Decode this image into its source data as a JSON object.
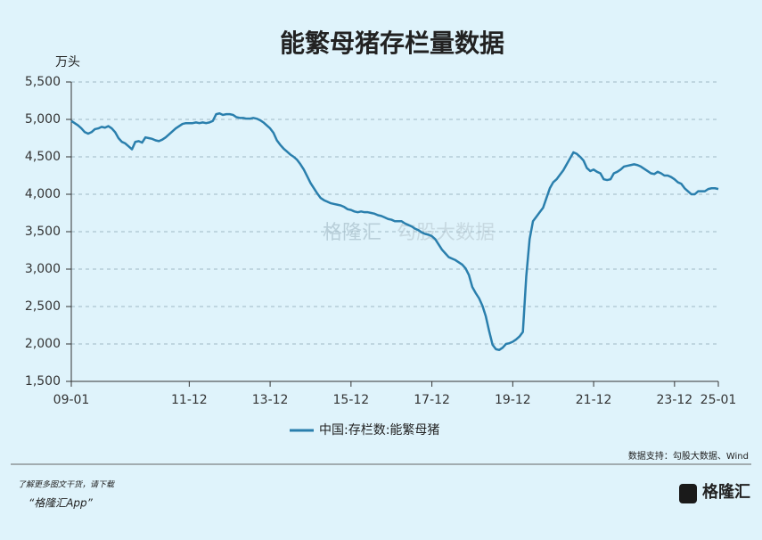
{
  "chart_data": {
    "type": "line",
    "title": "能繁母猪存栏量数据",
    "y_unit": "万头",
    "source": "数据支持：勾股大数据、Wind",
    "footer": [
      "了解更多图文干货，请下载",
      "“格隆汇App”"
    ],
    "logo": "格隆汇",
    "watermark": [
      "格隆汇",
      "勾股大数据"
    ],
    "categories": [
      "09-01",
      null,
      null,
      null,
      null,
      null,
      null,
      null,
      null,
      null,
      null,
      null,
      null,
      null,
      null,
      null,
      null,
      null,
      null,
      null,
      null,
      null,
      null,
      null,
      null,
      null,
      null,
      null,
      null,
      null,
      null,
      null,
      null,
      null,
      null,
      "11-12",
      null,
      null,
      null,
      null,
      null,
      null,
      null,
      null,
      null,
      null,
      null,
      null,
      null,
      null,
      null,
      null,
      null,
      null,
      null,
      null,
      null,
      null,
      null,
      "13-12",
      null,
      null,
      null,
      null,
      null,
      null,
      null,
      null,
      null,
      null,
      null,
      null,
      null,
      null,
      null,
      null,
      null,
      null,
      null,
      null,
      null,
      null,
      null,
      "15-12",
      null,
      null,
      null,
      null,
      null,
      null,
      null,
      null,
      null,
      null,
      null,
      null,
      null,
      null,
      null,
      null,
      null,
      null,
      null,
      null,
      null,
      null,
      null,
      "17-12",
      null,
      null,
      null,
      null,
      null,
      null,
      null,
      null,
      null,
      null,
      null,
      null,
      null,
      null,
      null,
      null,
      null,
      null,
      null,
      null,
      null,
      null,
      null,
      "19-12",
      null,
      null,
      null,
      null,
      null,
      null,
      null,
      null,
      null,
      null,
      null,
      null,
      null,
      null,
      null,
      null,
      null,
      null,
      null,
      null,
      null,
      null,
      null,
      "21-12",
      null,
      null,
      null,
      null,
      null,
      null,
      null,
      null,
      null,
      null,
      null,
      null,
      null,
      null,
      null,
      null,
      null,
      null,
      null,
      null,
      null,
      null,
      null,
      "23-12",
      null,
      null,
      null,
      null,
      null,
      null,
      null,
      null,
      null,
      null,
      null,
      null,
      "25-01"
    ],
    "series": [
      {
        "name": "中国:存栏数:能繁母猪",
        "color": "#2a7fad",
        "values": [
          4980,
          4950,
          4920,
          4880,
          4830,
          4810,
          4830,
          4870,
          4880,
          4900,
          4890,
          4910,
          4880,
          4830,
          4750,
          4700,
          4680,
          4640,
          4600,
          4700,
          4710,
          4690,
          4760,
          4750,
          4740,
          4720,
          4710,
          4730,
          4760,
          4800,
          4840,
          4880,
          4910,
          4940,
          4950,
          4950,
          4950,
          4960,
          4950,
          4960,
          4950,
          4960,
          4980,
          5070,
          5080,
          5060,
          5070,
          5070,
          5060,
          5030,
          5020,
          5020,
          5010,
          5010,
          5020,
          5010,
          4990,
          4960,
          4920,
          4880,
          4820,
          4720,
          4660,
          4610,
          4570,
          4530,
          4500,
          4460,
          4400,
          4330,
          4240,
          4150,
          4080,
          4010,
          3950,
          3920,
          3900,
          3880,
          3870,
          3860,
          3850,
          3830,
          3800,
          3790,
          3770,
          3760,
          3770,
          3760,
          3760,
          3750,
          3740,
          3720,
          3710,
          3690,
          3670,
          3660,
          3640,
          3640,
          3640,
          3610,
          3590,
          3570,
          3540,
          3520,
          3490,
          3470,
          3460,
          3440,
          3400,
          3330,
          3260,
          3210,
          3160,
          3140,
          3120,
          3090,
          3060,
          3010,
          2920,
          2760,
          2680,
          2610,
          2510,
          2370,
          2170,
          1990,
          1930,
          1920,
          1950,
          2000,
          2010,
          2030,
          2060,
          2100,
          2160,
          2900,
          3400,
          3640,
          3700,
          3760,
          3820,
          3950,
          4080,
          4160,
          4200,
          4260,
          4320,
          4400,
          4480,
          4560,
          4540,
          4500,
          4450,
          4350,
          4310,
          4330,
          4300,
          4280,
          4200,
          4190,
          4200,
          4280,
          4300,
          4330,
          4370,
          4380,
          4390,
          4400,
          4390,
          4370,
          4340,
          4310,
          4280,
          4270,
          4300,
          4280,
          4250,
          4250,
          4230,
          4200,
          4160,
          4140,
          4080,
          4040,
          4000,
          4000,
          4040,
          4040,
          4040,
          4070,
          4080,
          4080,
          4070
        ]
      }
    ],
    "ylim": [
      1500,
      5500
    ],
    "yticks": [
      {
        "value": 1500,
        "label": "1,500"
      },
      {
        "value": 2000,
        "label": "2,000"
      },
      {
        "value": 2500,
        "label": "2,500"
      },
      {
        "value": 3000,
        "label": "3,000"
      },
      {
        "value": 3500,
        "label": "3,500"
      },
      {
        "value": 4000,
        "label": "4,000"
      },
      {
        "value": 4500,
        "label": "4,500"
      },
      {
        "value": 5000,
        "label": "5,000"
      },
      {
        "value": 5500,
        "label": "5,500"
      }
    ],
    "grid": true
  }
}
